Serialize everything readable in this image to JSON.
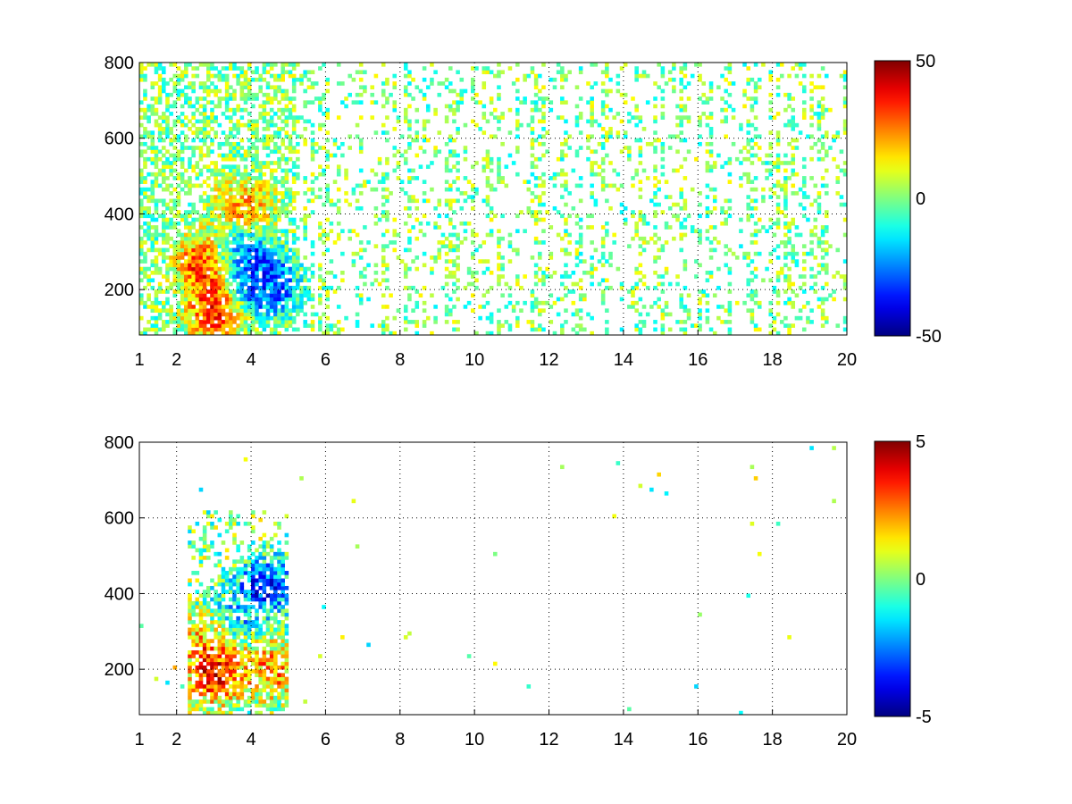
{
  "chart_data": [
    {
      "type": "heatmap",
      "title": "",
      "xlabel": "",
      "ylabel": "",
      "xlim": [
        1,
        20
      ],
      "ylim": [
        80,
        800
      ],
      "x_ticks": [
        1,
        2,
        4,
        6,
        8,
        10,
        12,
        14,
        16,
        18,
        20
      ],
      "y_ticks": [
        200,
        400,
        600,
        800
      ],
      "grid": true,
      "grid_style": "dotted",
      "colormap": "jet",
      "colorbar": {
        "range": [
          -50,
          50
        ],
        "ticks": [
          50,
          0,
          -50
        ]
      },
      "description_values": [
        {
          "x": 2.8,
          "y": 270,
          "value": 40
        },
        {
          "x": 3.0,
          "y": 140,
          "value": 35
        },
        {
          "x": 3.6,
          "y": 300,
          "value": -30
        },
        {
          "x": 4.2,
          "y": 230,
          "value": -35
        },
        {
          "x": 3.8,
          "y": 420,
          "value": 25
        },
        {
          "x": 4.6,
          "y": 200,
          "value": -20
        }
      ]
    },
    {
      "type": "heatmap",
      "title": "",
      "xlabel": "",
      "ylabel": "",
      "xlim": [
        1,
        20
      ],
      "ylim": [
        80,
        800
      ],
      "x_ticks": [
        1,
        2,
        4,
        6,
        8,
        10,
        12,
        14,
        16,
        18,
        20
      ],
      "y_ticks": [
        200,
        400,
        600,
        800
      ],
      "grid": true,
      "grid_style": "dotted",
      "colormap": "jet",
      "colorbar": {
        "range": [
          -5,
          5
        ],
        "ticks": [
          5,
          0,
          -5
        ]
      },
      "description_values": [
        {
          "x": 3.0,
          "y": 270,
          "value": 3
        },
        {
          "x": 3.5,
          "y": 330,
          "value": -2
        },
        {
          "x": 4.4,
          "y": 420,
          "value": -3.5
        },
        {
          "x": 3.0,
          "y": 180,
          "value": 3.5
        },
        {
          "x": 4.6,
          "y": 200,
          "value": 2.5
        }
      ]
    }
  ]
}
